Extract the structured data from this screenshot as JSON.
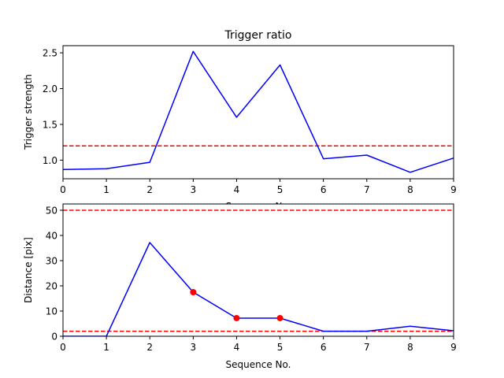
{
  "chart_data": [
    {
      "type": "line",
      "title": "Trigger ratio",
      "xlabel": "Sequence No.",
      "ylabel": "Trigger strength",
      "xlim": [
        0,
        9
      ],
      "ylim": [
        0.74,
        2.6
      ],
      "xticks": [
        0,
        1,
        2,
        3,
        4,
        5,
        6,
        7,
        8,
        9
      ],
      "yticks": [
        1.0,
        1.5,
        2.0,
        2.5
      ],
      "ytick_labels": [
        "1.0",
        "1.5",
        "2.0",
        "2.5"
      ],
      "grid": false,
      "series": [
        {
          "color": "#0000ff",
          "style": "solid",
          "x": [
            0,
            1,
            2,
            3,
            4,
            5,
            6,
            7,
            8,
            9
          ],
          "y": [
            0.87,
            0.88,
            0.97,
            2.52,
            1.6,
            2.33,
            1.02,
            1.07,
            0.83,
            1.03
          ]
        }
      ],
      "hlines": [
        {
          "y": 1.2,
          "color": "#ff0000",
          "style": "dashed"
        }
      ]
    },
    {
      "type": "line",
      "title": "",
      "xlabel": "Sequence No.",
      "ylabel": "Distance [pix]",
      "xlim": [
        0,
        9
      ],
      "ylim": [
        0,
        52.5
      ],
      "xticks": [
        0,
        1,
        2,
        3,
        4,
        5,
        6,
        7,
        8,
        9
      ],
      "yticks": [
        0,
        10,
        20,
        30,
        40,
        50
      ],
      "ytick_labels": [
        "0",
        "10",
        "20",
        "30",
        "40",
        "50"
      ],
      "grid": false,
      "series": [
        {
          "color": "#0000ff",
          "style": "solid",
          "x": [
            0,
            1,
            2,
            3,
            4,
            5,
            6,
            7,
            8,
            9
          ],
          "y": [
            0,
            0,
            37.2,
            17.5,
            7.2,
            7.2,
            2,
            2,
            4,
            2.2
          ]
        }
      ],
      "markers": [
        {
          "color": "#ff0000",
          "x": [
            3,
            4,
            5
          ],
          "y": [
            17.5,
            7.2,
            7.2
          ]
        }
      ],
      "hlines": [
        {
          "y": 50,
          "color": "#ff0000",
          "style": "dashed"
        },
        {
          "y": 2,
          "color": "#ff0000",
          "style": "dashed"
        }
      ]
    }
  ]
}
